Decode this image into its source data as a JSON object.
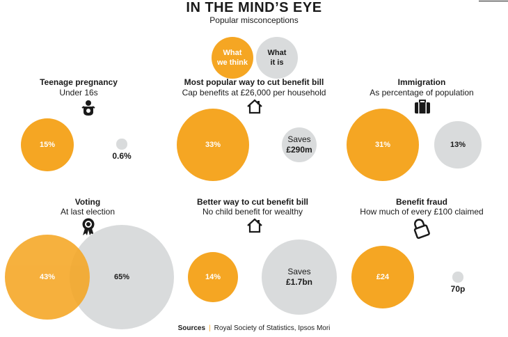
{
  "title": "IN THE MIND’S EYE",
  "subtitle": "Popular misconceptions",
  "legend": {
    "think": "What we think",
    "is": "What it is",
    "think_line1": "What",
    "think_line2": "we think",
    "is_line1": "What",
    "is_line2": "it is"
  },
  "colors": {
    "think": "#f5a623",
    "is": "#d9dbdc"
  },
  "chart_data": {
    "type": "bubble",
    "title": "IN THE MIND’S EYE",
    "subtitle": "Popular misconceptions",
    "series": [
      "What we think",
      "What it is"
    ],
    "panels": [
      {
        "title": "Teenage pregnancy",
        "subtitle": "Under 16s",
        "icon": "baby-icon",
        "think": 15,
        "is": 0.6,
        "think_label": "15%",
        "is_label": "0.6%",
        "unit": "%"
      },
      {
        "title": "Most popular way to cut benefit bill",
        "subtitle": "Cap benefits at £26,000 per household",
        "icon": "house-icon",
        "think_label": "33%",
        "is_label": "£290m",
        "is_prefix": "Saves",
        "think": 33
      },
      {
        "title": "Immigration",
        "subtitle": "As percentage of population",
        "icon": "suitcase-icon",
        "think": 31,
        "is": 13,
        "think_label": "31%",
        "is_label": "13%",
        "unit": "%"
      },
      {
        "title": "Voting",
        "subtitle": "At last election",
        "icon": "rosette-icon",
        "think": 43,
        "is": 65,
        "think_label": "43%",
        "is_label": "65%",
        "unit": "%"
      },
      {
        "title": "Better way to cut benefit bill",
        "subtitle": "No child benefit for wealthy",
        "icon": "house-icon",
        "think_label": "14%",
        "is_label": "£1.7bn",
        "is_prefix": "Saves",
        "think": 14
      },
      {
        "title": "Benefit fraud",
        "subtitle": "How much of every £100 claimed",
        "icon": "padlock-icon",
        "think": 24,
        "is": 0.7,
        "think_label": "£24",
        "is_label": "70p",
        "unit": "£"
      }
    ]
  },
  "sources": {
    "label": "Sources",
    "text": "Royal Society of Statistics, Ipsos Mori"
  }
}
